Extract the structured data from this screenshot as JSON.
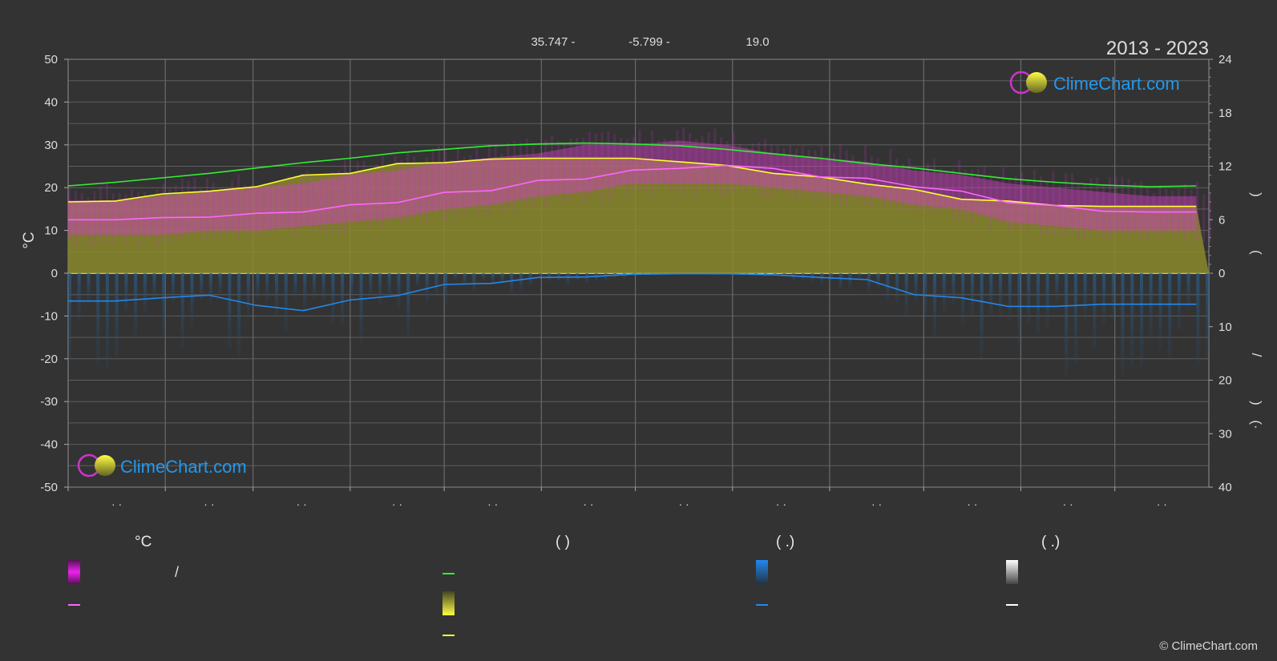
{
  "header": {
    "lat": "35.747 -",
    "lon": "-5.799 -",
    "elev": "19.0",
    "years": "2013 - 2023"
  },
  "brand": {
    "name": "ClimeChart.com",
    "copyright": "© ClimeChart.com"
  },
  "colors": {
    "background": "#333333",
    "sunshine": "#ffff33",
    "daylight": "#33ee33",
    "temp_mean": "#ff66ff",
    "temp_range": "#ee22ee",
    "precip": "#2288ee",
    "brand": "#2299ee"
  },
  "chart_data": {
    "type": "line",
    "x": [
      1,
      16,
      31,
      46,
      61,
      76,
      91,
      106,
      121,
      136,
      151,
      166,
      181,
      196,
      211,
      226,
      241,
      256,
      271,
      286,
      301,
      316,
      331,
      346,
      361
    ],
    "left_axis": {
      "label": "°C",
      "ylim": [
        -50,
        50
      ],
      "ticks": [
        50,
        40,
        30,
        20,
        10,
        0,
        -10,
        -20,
        -30,
        -40,
        -50
      ]
    },
    "right_axis_top": {
      "ylim": [
        0,
        24
      ],
      "ticks": [
        24,
        18,
        12,
        6,
        0
      ],
      "label_fragments": [
        ")",
        "("
      ]
    },
    "right_axis_bottom": {
      "ylim": [
        0,
        40
      ],
      "ticks": [
        0,
        10,
        20,
        30,
        40
      ],
      "label_fragments": [
        "/",
        ")",
        "(·"
      ]
    },
    "month_labels": [
      "· ·",
      "· ·",
      "· ·",
      "· ·",
      "· ·",
      "· ·",
      "· ·",
      "· ·",
      "· ·",
      "· ·",
      "· ·",
      "· ·"
    ],
    "grid": true,
    "series": [
      {
        "key": "daylight",
        "axis": "right_top",
        "values": [
          9.8,
          10.2,
          10.7,
          11.2,
          11.8,
          12.4,
          12.9,
          13.5,
          13.9,
          14.3,
          14.5,
          14.6,
          14.5,
          14.3,
          13.9,
          13.4,
          12.9,
          12.3,
          11.8,
          11.2,
          10.6,
          10.2,
          9.9,
          9.7,
          9.8
        ]
      },
      {
        "key": "sunshine",
        "axis": "right_top",
        "values": [
          8.0,
          8.1,
          8.9,
          9.2,
          9.7,
          11.0,
          11.2,
          12.3,
          12.4,
          12.8,
          12.9,
          12.9,
          12.9,
          12.5,
          12.1,
          11.2,
          10.8,
          10.0,
          9.4,
          8.3,
          8.1,
          7.6,
          7.5,
          7.5,
          7.5
        ]
      },
      {
        "key": "temp_mean",
        "axis": "left",
        "values": [
          12.5,
          12.5,
          13.0,
          13.1,
          14.0,
          14.3,
          16.0,
          16.5,
          18.9,
          19.3,
          21.7,
          22.0,
          24.1,
          24.5,
          25.2,
          24.5,
          22.5,
          22.2,
          20.2,
          19.2,
          16.5,
          15.8,
          14.5,
          14.3,
          14.3
        ]
      },
      {
        "key": "precip",
        "axis": "right_bottom",
        "values": [
          5.2,
          5.2,
          4.6,
          4.1,
          6.0,
          7.0,
          5.0,
          4.2,
          2.1,
          1.9,
          0.8,
          0.7,
          0.2,
          0.1,
          0.1,
          0.3,
          0.8,
          1.2,
          4.0,
          4.6,
          6.2,
          6.2,
          5.8,
          5.8,
          5.8
        ]
      }
    ],
    "bands": [
      {
        "key": "temp_range",
        "axis": "left",
        "high": [
          17,
          17,
          18,
          19,
          20,
          21,
          23,
          24,
          26,
          27,
          28,
          30,
          30,
          31,
          30,
          28,
          27,
          26,
          24,
          23,
          21,
          20,
          19,
          18,
          18
        ],
        "low": [
          9,
          9,
          9,
          10,
          10,
          11,
          12,
          13,
          15,
          16,
          18,
          19,
          21,
          21,
          21,
          20,
          19,
          18,
          16,
          15,
          12,
          11,
          10,
          10,
          10
        ]
      },
      {
        "key": "sunshine_fill",
        "axis": "right_top",
        "values": [
          8.0,
          8.1,
          8.9,
          9.2,
          9.7,
          11.0,
          11.2,
          12.3,
          12.4,
          12.8,
          12.9,
          12.9,
          12.9,
          12.5,
          12.1,
          11.2,
          10.8,
          10.0,
          9.4,
          8.3,
          8.1,
          7.6,
          7.5,
          7.5,
          7.5
        ]
      }
    ]
  },
  "legend": {
    "col1": {
      "header": "°C",
      "row1": "/",
      "row2": ""
    },
    "col2": {
      "header": "(          )",
      "row1": "",
      "row2": "",
      "row3": ""
    },
    "col3": {
      "header": "(   .)",
      "row1": "",
      "row2": ""
    },
    "col4": {
      "header": "(   .)",
      "row1": "",
      "row2": ""
    }
  }
}
